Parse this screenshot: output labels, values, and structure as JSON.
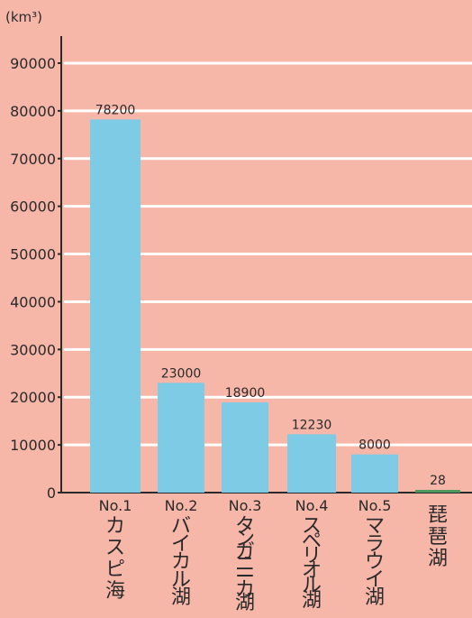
{
  "chart_data": {
    "type": "bar",
    "ylabel": "(km³)",
    "ylim": [
      0,
      90000
    ],
    "yticks": [
      0,
      10000,
      20000,
      30000,
      40000,
      50000,
      60000,
      70000,
      80000,
      90000
    ],
    "grid": true,
    "categories": [
      {
        "rank": "No.1",
        "name": "カスピ海"
      },
      {
        "rank": "No.2",
        "name": "バイカル湖"
      },
      {
        "rank": "No.3",
        "name": "タンガニーカ湖"
      },
      {
        "rank": "No.4",
        "name": "スペリオル湖"
      },
      {
        "rank": "No.5",
        "name": "マラウイ湖"
      },
      {
        "rank": "",
        "name": "琵琶湖"
      }
    ],
    "values": [
      78200,
      23000,
      18900,
      12230,
      8000,
      28
    ],
    "value_labels": [
      "78200",
      "23000",
      "18900",
      "12230",
      "8000",
      "28"
    ],
    "colors": {
      "background": "#f6b6a8",
      "bar": "#7ecbe6",
      "bar_small": "#4d9a5e",
      "grid": "#ffffff",
      "axis": "#2a2a2a"
    }
  }
}
